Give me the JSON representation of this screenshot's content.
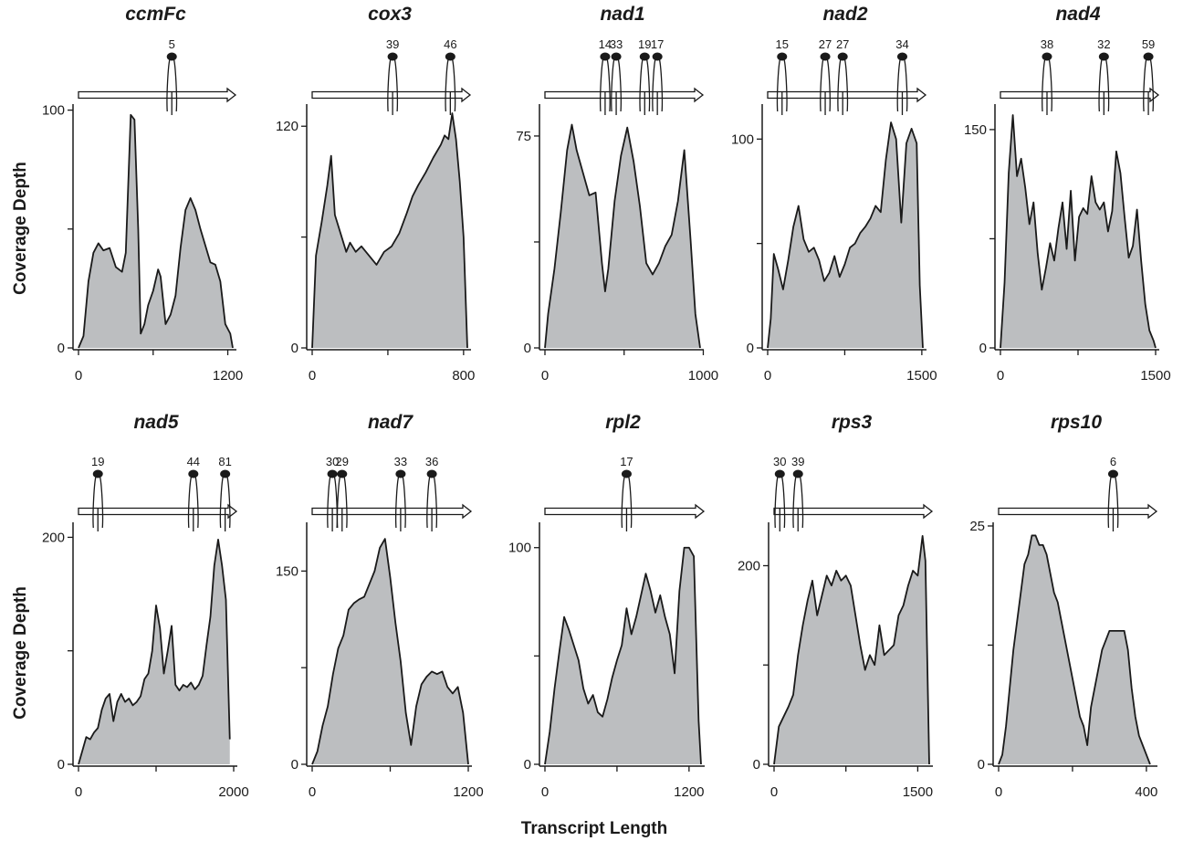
{
  "figure": {
    "ylabel": "Coverage Depth",
    "xlabel": "Transcript Length"
  },
  "colors": {
    "fill": "#bcbec0",
    "line": "#1a1a1a",
    "axis": "#1a1a1a"
  },
  "chart_data": [
    {
      "type": "area",
      "title": "ccmFc",
      "xlim": [
        0,
        1240
      ],
      "ylim": [
        0,
        101
      ],
      "xticks": [
        0,
        600,
        1200
      ],
      "xtick_labels": [
        "0",
        "",
        "1200"
      ],
      "yticks": [
        0,
        50,
        100
      ],
      "ytick_labels": [
        "0",
        "",
        "100"
      ],
      "x": [
        0,
        40,
        80,
        120,
        160,
        200,
        250,
        300,
        350,
        380,
        420,
        450,
        480,
        500,
        530,
        560,
        600,
        640,
        660,
        700,
        740,
        780,
        820,
        860,
        900,
        940,
        980,
        1020,
        1060,
        1100,
        1140,
        1180,
        1220,
        1240
      ],
      "y": [
        0,
        5,
        28,
        40,
        44,
        41,
        42,
        34,
        32,
        40,
        98,
        96,
        50,
        6,
        10,
        18,
        24,
        33,
        30,
        10,
        14,
        22,
        42,
        58,
        63,
        58,
        50,
        43,
        36,
        35,
        28,
        10,
        6,
        0
      ],
      "annotations": [
        {
          "x": 750,
          "label": "5"
        }
      ]
    },
    {
      "type": "area",
      "title": "cox3",
      "xlim": [
        0,
        820
      ],
      "ylim": [
        0,
        130
      ],
      "xticks": [
        0,
        400,
        800
      ],
      "xtick_labels": [
        "0",
        "",
        "800"
      ],
      "yticks": [
        0,
        60,
        120
      ],
      "ytick_labels": [
        "0",
        "",
        "120"
      ],
      "x": [
        0,
        20,
        50,
        80,
        100,
        120,
        150,
        180,
        200,
        230,
        260,
        300,
        340,
        380,
        420,
        460,
        500,
        530,
        560,
        600,
        640,
        680,
        700,
        720,
        740,
        760,
        780,
        800,
        820
      ],
      "y": [
        0,
        50,
        68,
        88,
        104,
        72,
        62,
        52,
        57,
        52,
        55,
        50,
        45,
        52,
        55,
        62,
        73,
        82,
        88,
        95,
        103,
        110,
        115,
        113,
        127,
        113,
        90,
        60,
        0
      ],
      "annotations": [
        {
          "x": 425,
          "label": "39"
        },
        {
          "x": 730,
          "label": "46"
        }
      ]
    },
    {
      "type": "area",
      "title": "nad1",
      "xlim": [
        0,
        980
      ],
      "ylim": [
        0,
        85
      ],
      "xticks": [
        0,
        500,
        1000
      ],
      "xtick_labels": [
        "0",
        "",
        "1000"
      ],
      "yticks": [
        0,
        37.5,
        75
      ],
      "ytick_labels": [
        "0",
        "",
        "75"
      ],
      "x": [
        0,
        20,
        60,
        100,
        140,
        170,
        200,
        240,
        280,
        320,
        360,
        380,
        400,
        440,
        480,
        520,
        560,
        600,
        640,
        680,
        720,
        760,
        800,
        840,
        880,
        920,
        950,
        980
      ],
      "y": [
        0,
        12,
        28,
        48,
        70,
        79,
        70,
        62,
        54,
        55,
        30,
        20,
        28,
        52,
        68,
        78,
        66,
        50,
        30,
        26,
        30,
        36,
        40,
        52,
        70,
        38,
        12,
        0
      ],
      "annotations": [
        {
          "x": 380,
          "label": "14"
        },
        {
          "x": 450,
          "label": "33"
        },
        {
          "x": 630,
          "label": "19"
        },
        {
          "x": 710,
          "label": "17"
        }
      ]
    },
    {
      "type": "area",
      "title": "nad2",
      "xlim": [
        0,
        1510
      ],
      "ylim": [
        0,
        115
      ],
      "xticks": [
        0,
        750,
        1500
      ],
      "xtick_labels": [
        "0",
        "",
        "1500"
      ],
      "yticks": [
        0,
        50,
        100
      ],
      "ytick_labels": [
        "0",
        "",
        "100"
      ],
      "x": [
        0,
        30,
        60,
        100,
        150,
        200,
        250,
        300,
        350,
        400,
        450,
        500,
        550,
        600,
        650,
        700,
        750,
        800,
        850,
        900,
        950,
        1000,
        1050,
        1100,
        1150,
        1200,
        1250,
        1300,
        1350,
        1400,
        1450,
        1480,
        1510
      ],
      "y": [
        0,
        14,
        45,
        38,
        28,
        42,
        58,
        68,
        52,
        46,
        48,
        42,
        32,
        36,
        44,
        34,
        40,
        48,
        50,
        55,
        58,
        62,
        68,
        65,
        90,
        108,
        100,
        60,
        98,
        105,
        98,
        30,
        0
      ],
      "annotations": [
        {
          "x": 140,
          "label": "15"
        },
        {
          "x": 560,
          "label": "27"
        },
        {
          "x": 730,
          "label": "27"
        },
        {
          "x": 1310,
          "label": "34"
        }
      ]
    },
    {
      "type": "area",
      "title": "nad4",
      "xlim": [
        0,
        1500
      ],
      "ylim": [
        0,
        165
      ],
      "xticks": [
        0,
        750,
        1500
      ],
      "xtick_labels": [
        "0",
        "",
        "1500"
      ],
      "yticks": [
        0,
        75,
        150
      ],
      "ytick_labels": [
        "0",
        "",
        "150"
      ],
      "x": [
        0,
        40,
        80,
        120,
        160,
        200,
        240,
        280,
        320,
        360,
        400,
        440,
        480,
        520,
        560,
        600,
        640,
        680,
        720,
        760,
        800,
        840,
        880,
        920,
        960,
        1000,
        1040,
        1080,
        1120,
        1160,
        1200,
        1240,
        1280,
        1320,
        1360,
        1400,
        1440,
        1480,
        1500
      ],
      "y": [
        0,
        45,
        120,
        160,
        118,
        130,
        110,
        85,
        100,
        65,
        40,
        55,
        72,
        60,
        82,
        100,
        68,
        108,
        60,
        90,
        96,
        92,
        118,
        100,
        95,
        100,
        80,
        94,
        135,
        120,
        90,
        62,
        70,
        95,
        60,
        30,
        12,
        5,
        0
      ],
      "annotations": [
        {
          "x": 450,
          "label": "38"
        },
        {
          "x": 1000,
          "label": "32"
        },
        {
          "x": 1430,
          "label": "59"
        }
      ]
    },
    {
      "type": "area",
      "title": "nad5",
      "xlim": [
        0,
        2000
      ],
      "ylim": [
        0,
        210
      ],
      "xticks": [
        0,
        1000,
        2000
      ],
      "xtick_labels": [
        "0",
        "",
        "2000"
      ],
      "yticks": [
        0,
        100,
        200
      ],
      "ytick_labels": [
        "0",
        "",
        "200"
      ],
      "x": [
        0,
        50,
        100,
        150,
        200,
        250,
        300,
        350,
        400,
        450,
        500,
        550,
        600,
        650,
        700,
        750,
        800,
        850,
        900,
        950,
        1000,
        1050,
        1100,
        1150,
        1200,
        1250,
        1300,
        1350,
        1400,
        1450,
        1500,
        1550,
        1600,
        1650,
        1700,
        1750,
        1800,
        1850,
        1900,
        1950
      ],
      "y": [
        0,
        12,
        24,
        22,
        28,
        32,
        48,
        58,
        62,
        38,
        55,
        62,
        55,
        58,
        52,
        55,
        60,
        75,
        80,
        100,
        140,
        120,
        80,
        100,
        122,
        70,
        65,
        70,
        68,
        72,
        66,
        70,
        78,
        105,
        130,
        175,
        198,
        175,
        145,
        22
      ],
      "annotations": [
        {
          "x": 250,
          "label": "19"
        },
        {
          "x": 1480,
          "label": "44"
        },
        {
          "x": 1890,
          "label": "81"
        }
      ]
    },
    {
      "type": "area",
      "title": "nad7",
      "xlim": [
        0,
        1200
      ],
      "ylim": [
        0,
        185
      ],
      "xticks": [
        0,
        600,
        1200
      ],
      "xtick_labels": [
        "0",
        "",
        "1200"
      ],
      "yticks": [
        0,
        75,
        150
      ],
      "ytick_labels": [
        "0",
        "",
        "150"
      ],
      "x": [
        0,
        40,
        80,
        120,
        160,
        200,
        240,
        280,
        320,
        360,
        400,
        440,
        480,
        520,
        560,
        600,
        640,
        680,
        720,
        760,
        800,
        840,
        880,
        920,
        960,
        1000,
        1040,
        1080,
        1120,
        1160,
        1200
      ],
      "y": [
        0,
        10,
        30,
        45,
        70,
        90,
        100,
        120,
        125,
        128,
        130,
        140,
        150,
        168,
        175,
        145,
        110,
        80,
        40,
        15,
        45,
        62,
        68,
        72,
        70,
        72,
        60,
        55,
        60,
        40,
        0
      ],
      "annotations": [
        {
          "x": 155,
          "label": "30"
        },
        {
          "x": 230,
          "label": "29"
        },
        {
          "x": 680,
          "label": "33"
        },
        {
          "x": 920,
          "label": "36"
        }
      ]
    },
    {
      "type": "area",
      "title": "rpl2",
      "xlim": [
        0,
        1300
      ],
      "ylim": [
        0,
        110
      ],
      "xticks": [
        0,
        600,
        1200
      ],
      "xtick_labels": [
        "0",
        "",
        "1200"
      ],
      "yticks": [
        0,
        50,
        100
      ],
      "ytick_labels": [
        "0",
        "",
        "100"
      ],
      "x": [
        0,
        40,
        80,
        120,
        160,
        200,
        240,
        280,
        320,
        360,
        400,
        440,
        480,
        520,
        560,
        600,
        640,
        680,
        720,
        760,
        800,
        840,
        880,
        920,
        960,
        1000,
        1040,
        1080,
        1120,
        1160,
        1200,
        1240,
        1280,
        1300
      ],
      "y": [
        0,
        15,
        35,
        52,
        68,
        62,
        55,
        48,
        35,
        28,
        32,
        24,
        22,
        30,
        40,
        48,
        55,
        72,
        60,
        68,
        78,
        88,
        80,
        70,
        78,
        68,
        60,
        42,
        80,
        100,
        100,
        96,
        20,
        0
      ],
      "annotations": [
        {
          "x": 680,
          "label": "17"
        }
      ]
    },
    {
      "type": "area",
      "title": "rps3",
      "xlim": [
        0,
        1620
      ],
      "ylim": [
        0,
        240
      ],
      "xticks": [
        0,
        750,
        1500
      ],
      "xtick_labels": [
        "0",
        "",
        "1500"
      ],
      "yticks": [
        0,
        100,
        200
      ],
      "ytick_labels": [
        "0",
        "",
        "200"
      ],
      "x": [
        0,
        50,
        100,
        150,
        200,
        250,
        300,
        350,
        400,
        450,
        500,
        550,
        600,
        650,
        700,
        750,
        800,
        850,
        900,
        950,
        1000,
        1050,
        1100,
        1150,
        1200,
        1250,
        1300,
        1350,
        1400,
        1450,
        1500,
        1550,
        1580,
        1620
      ],
      "y": [
        0,
        38,
        48,
        58,
        70,
        110,
        140,
        165,
        185,
        150,
        170,
        190,
        180,
        195,
        185,
        190,
        180,
        150,
        120,
        95,
        110,
        100,
        140,
        110,
        115,
        120,
        150,
        160,
        180,
        195,
        190,
        230,
        205,
        0
      ],
      "annotations": [
        {
          "x": 60,
          "label": "30"
        },
        {
          "x": 250,
          "label": "39"
        }
      ]
    },
    {
      "type": "area",
      "title": "rps10",
      "xlim": [
        0,
        420
      ],
      "ylim": [
        0,
        25
      ],
      "xticks": [
        0,
        200,
        400
      ],
      "xtick_labels": [
        "0",
        "",
        "400"
      ],
      "yticks": [
        0,
        12.5,
        25
      ],
      "ytick_labels": [
        "0",
        "",
        "25"
      ],
      "x": [
        0,
        10,
        20,
        30,
        40,
        50,
        60,
        70,
        80,
        90,
        100,
        110,
        120,
        130,
        140,
        150,
        160,
        170,
        180,
        190,
        200,
        210,
        220,
        230,
        240,
        250,
        260,
        270,
        280,
        290,
        300,
        310,
        320,
        330,
        340,
        350,
        360,
        370,
        380,
        390,
        400,
        410
      ],
      "y": [
        0,
        1,
        4,
        8,
        12,
        15,
        18,
        21,
        22,
        24,
        24,
        23,
        23,
        22,
        20,
        18,
        17,
        15,
        13,
        11,
        9,
        7,
        5,
        4,
        2,
        6,
        8,
        10,
        12,
        13,
        14,
        14,
        14,
        14,
        14,
        12,
        8,
        5,
        3,
        2,
        1,
        0
      ],
      "annotations": [
        {
          "x": 310,
          "label": "6"
        }
      ]
    }
  ]
}
